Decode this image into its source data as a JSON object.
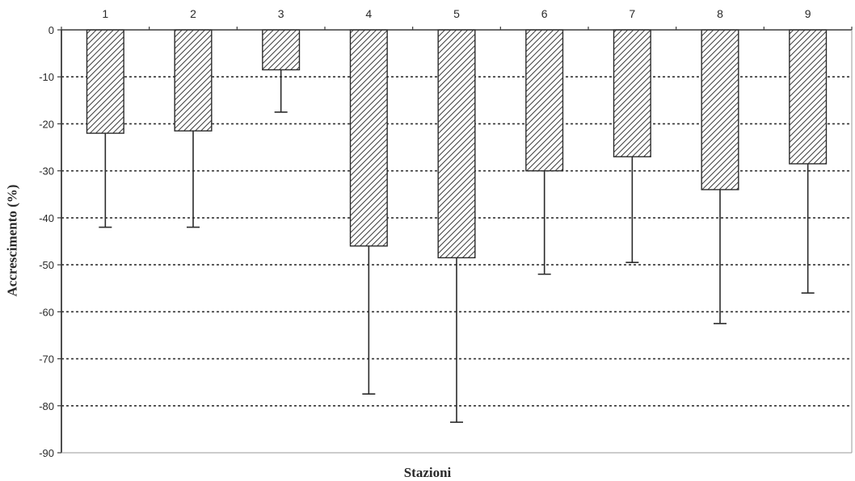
{
  "chart_data": {
    "type": "bar",
    "categories": [
      "1",
      "2",
      "3",
      "4",
      "5",
      "6",
      "7",
      "8",
      "9"
    ],
    "values": [
      -22,
      -21.5,
      -8.5,
      -46,
      -48.5,
      -30,
      -27,
      -34,
      -28.5
    ],
    "error_low": [
      -42,
      -42,
      -17.5,
      -77.5,
      -83.5,
      -52,
      -49.5,
      -62.5,
      -56
    ],
    "xlabel": "Stazioni",
    "ylabel": "Accrescimento (%)",
    "ylim": [
      -90,
      0
    ],
    "yticks": [
      "0",
      "-10",
      "-20",
      "-30",
      "-40",
      "-50",
      "-60",
      "-70",
      "-80",
      "-90"
    ],
    "xaxis_position": "top",
    "grid": "dotted horizontal",
    "bar_fill": "diagonal-hatch",
    "colors": {
      "bar_stroke": "#2b2b2b",
      "hatch": "#3a3a3a",
      "axis": "#3a3a3a",
      "grid": "#333333",
      "text": "#2a2a2a"
    }
  }
}
